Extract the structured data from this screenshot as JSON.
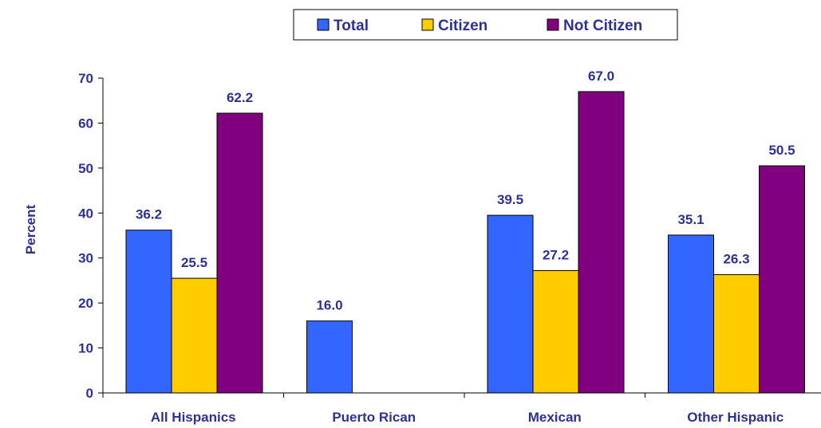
{
  "chart_data": {
    "type": "bar",
    "categories": [
      "All Hispanics",
      "Puerto Rican",
      "Mexican",
      "Other Hispanic"
    ],
    "series": [
      {
        "name": "Total",
        "color": "#3366ff",
        "values": [
          36.2,
          16.0,
          39.5,
          35.1
        ]
      },
      {
        "name": "Citizen",
        "color": "#ffcc00",
        "values": [
          25.5,
          null,
          27.2,
          26.3
        ]
      },
      {
        "name": "Not Citizen",
        "color": "#800080",
        "values": [
          62.2,
          null,
          67.0,
          50.5
        ]
      }
    ],
    "ylabel": "Percent",
    "ylim": [
      0,
      70
    ],
    "yticks": [
      0,
      10,
      20,
      30,
      40,
      50,
      60,
      70
    ],
    "grid": false,
    "legend_position": "top"
  }
}
